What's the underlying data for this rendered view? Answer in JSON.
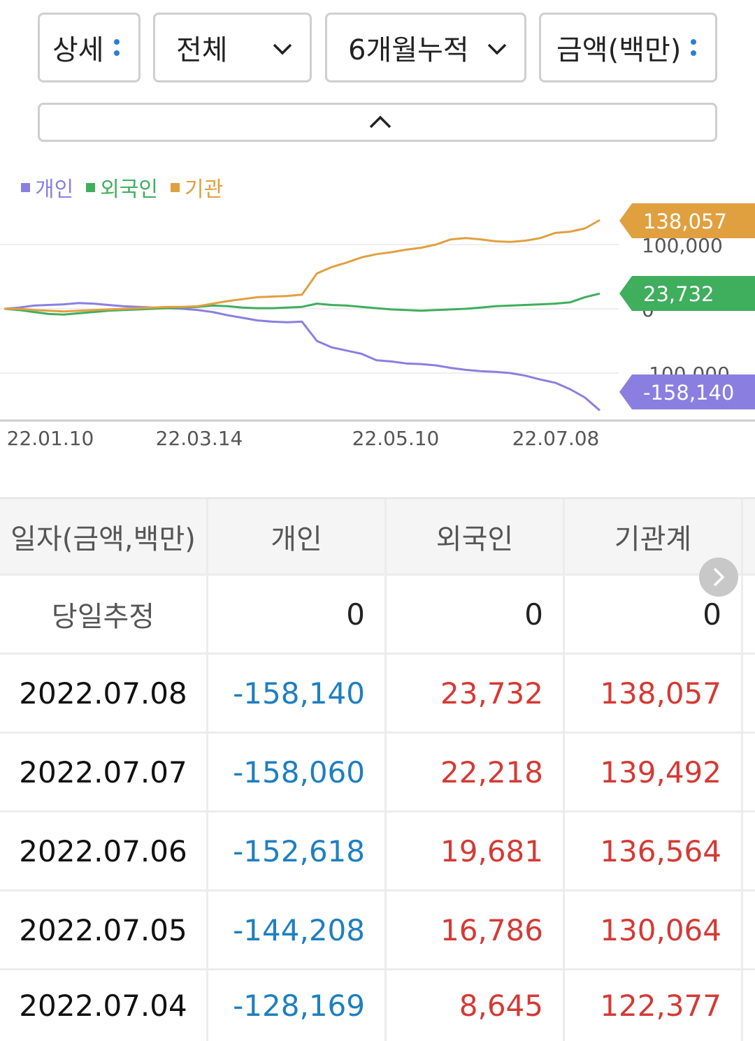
{
  "filters": {
    "detail": "상세",
    "market": "전체",
    "period": "6개월누적",
    "unit": "금액(백만)"
  },
  "legend": [
    {
      "label": "개인",
      "color": "#8a7fe0"
    },
    {
      "label": "외국인",
      "color": "#3fae5d"
    },
    {
      "label": "기관",
      "color": "#e0a040"
    }
  ],
  "chart_data": {
    "type": "line",
    "x_ticks": [
      "22.01.10",
      "22.03.14",
      "22.05.10",
      "22.07.08"
    ],
    "y_ticks": [
      100000,
      0,
      -100000
    ],
    "y_tick_labels": [
      "100,000",
      "0",
      "-100,000"
    ],
    "ylim": [
      -170000,
      150000
    ],
    "grid": true,
    "legend_position": "top-left",
    "series": [
      {
        "name": "개인",
        "color": "#8a7fe0",
        "end_label": "-158,140",
        "values": [
          0,
          2000,
          5000,
          6000,
          7000,
          9000,
          8000,
          6000,
          4000,
          3000,
          2000,
          1000,
          0,
          -2000,
          -5000,
          -10000,
          -14000,
          -18000,
          -20000,
          -21000,
          -20000,
          -50000,
          -60000,
          -65000,
          -70000,
          -80000,
          -82000,
          -85000,
          -86000,
          -88000,
          -92000,
          -95000,
          -97000,
          -98000,
          -100000,
          -104000,
          -110000,
          -115000,
          -125000,
          -138000,
          -158140
        ]
      },
      {
        "name": "외국인",
        "color": "#3fae5d",
        "end_label": "23,732",
        "values": [
          0,
          -2000,
          -5000,
          -8000,
          -9000,
          -7000,
          -5000,
          -3000,
          -2000,
          -1000,
          0,
          1000,
          2000,
          3000,
          5000,
          4000,
          2000,
          1000,
          1000,
          2000,
          3000,
          8000,
          6000,
          5000,
          3000,
          1000,
          -1000,
          -2000,
          -3000,
          -2000,
          -1000,
          0,
          2000,
          4000,
          5000,
          6000,
          7000,
          8000,
          10000,
          18000,
          23732
        ]
      },
      {
        "name": "기관",
        "color": "#e0a040",
        "end_label": "138,057",
        "values": [
          0,
          0,
          -2000,
          -3000,
          -4000,
          -3000,
          -2000,
          -1000,
          0,
          1000,
          2000,
          3000,
          3000,
          4000,
          8000,
          12000,
          15000,
          18000,
          19000,
          20000,
          22000,
          55000,
          65000,
          72000,
          80000,
          85000,
          88000,
          92000,
          95000,
          100000,
          108000,
          110000,
          108000,
          105000,
          104000,
          106000,
          110000,
          118000,
          120000,
          125000,
          138057
        ]
      }
    ]
  },
  "table": {
    "headers": [
      "일자(금액,백만)",
      "개인",
      "외국인",
      "기관계"
    ],
    "estimate": {
      "label": "당일추정",
      "individual": "0",
      "foreign": "0",
      "institution": "0"
    },
    "rows": [
      {
        "date": "2022.07.08",
        "individual": "-158,140",
        "foreign": "23,732",
        "institution": "138,057"
      },
      {
        "date": "2022.07.07",
        "individual": "-158,060",
        "foreign": "22,218",
        "institution": "139,492"
      },
      {
        "date": "2022.07.06",
        "individual": "-152,618",
        "foreign": "19,681",
        "institution": "136,564"
      },
      {
        "date": "2022.07.05",
        "individual": "-144,208",
        "foreign": "16,786",
        "institution": "130,064"
      },
      {
        "date": "2022.07.04",
        "individual": "-128,169",
        "foreign": "8,645",
        "institution": "122,377"
      }
    ]
  }
}
